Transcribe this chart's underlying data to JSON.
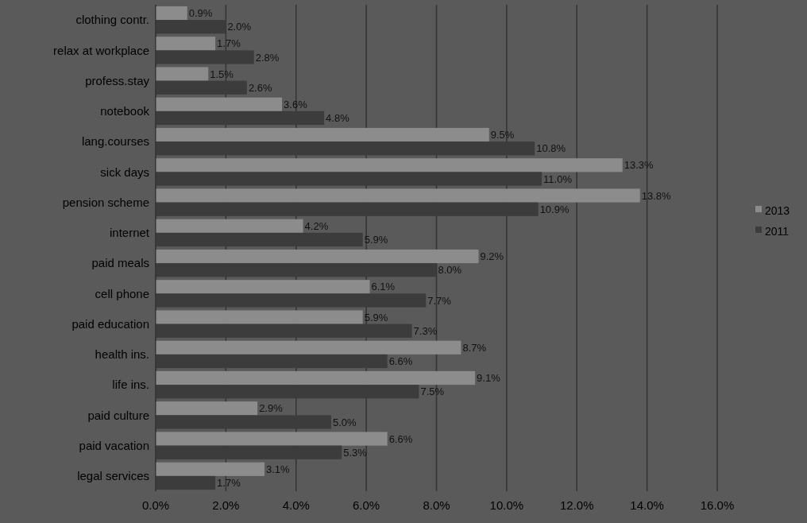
{
  "chart_data": {
    "type": "bar",
    "orientation": "horizontal",
    "categories": [
      "clothing contr.",
      "relax at workplace",
      "profess.stay",
      "notebook",
      "lang.courses",
      "sick days",
      "pension scheme",
      "internet",
      "paid meals",
      "cell phone",
      "paid education",
      "health ins.",
      "life ins.",
      "paid culture",
      "paid vacation",
      "legal services"
    ],
    "series": [
      {
        "name": "2013",
        "color": "#8c8c8c",
        "values": [
          0.9,
          1.7,
          1.5,
          3.6,
          9.5,
          13.3,
          13.8,
          4.2,
          9.2,
          6.1,
          5.9,
          8.7,
          9.1,
          2.9,
          6.6,
          3.1
        ],
        "value_labels": [
          "0.9%",
          "1.7%",
          "1.5%",
          "3.6%",
          "9.5%",
          "13.3%",
          "13.8%",
          "4.2%",
          "9.2%",
          "6.1%",
          "5.9%",
          "8.7%",
          "9.1%",
          "2.9%",
          "6.6%",
          "3.1%"
        ]
      },
      {
        "name": "2011",
        "color": "#3c3c3c",
        "values": [
          2.0,
          2.8,
          2.6,
          4.8,
          10.8,
          11.0,
          10.9,
          5.9,
          8.0,
          7.7,
          7.3,
          6.6,
          7.5,
          5.0,
          5.3,
          1.7
        ],
        "value_labels": [
          "2.0%",
          "2.8%",
          "2.6%",
          "4.8%",
          "10.8%",
          "11.0%",
          "10.9%",
          "5.9%",
          "8.0%",
          "7.7%",
          "7.3%",
          "6.6%",
          "7.5%",
          "5.0%",
          "5.3%",
          "1.7%"
        ]
      }
    ],
    "xlim": [
      0,
      16
    ],
    "xticks": [
      {
        "value": 0,
        "label": "0.0%"
      },
      {
        "value": 2,
        "label": "2.0%"
      },
      {
        "value": 4,
        "label": "4.0%"
      },
      {
        "value": 6,
        "label": "6.0%"
      },
      {
        "value": 8,
        "label": "8.0%"
      },
      {
        "value": 10,
        "label": "10.0%"
      },
      {
        "value": 12,
        "label": "12.0%"
      },
      {
        "value": 14,
        "label": "14.0%"
      },
      {
        "value": 16,
        "label": "16.0%"
      }
    ],
    "grid": "x",
    "legend": "right"
  }
}
